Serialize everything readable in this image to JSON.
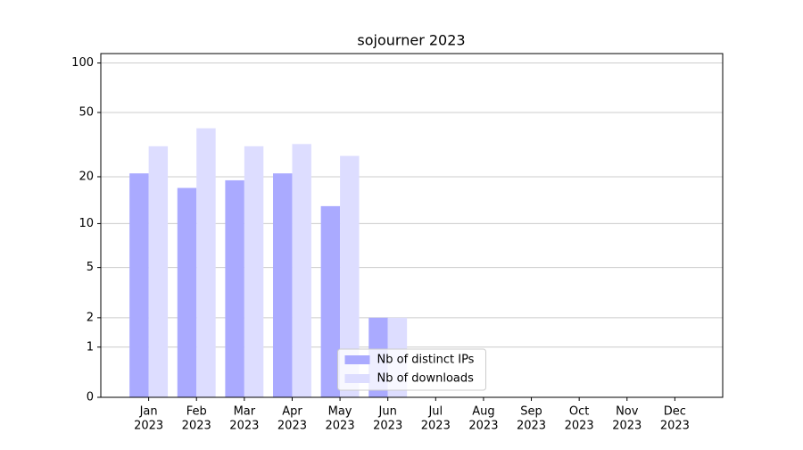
{
  "chart_data": {
    "type": "bar",
    "title": "sojourner 2023",
    "categories": [
      [
        "Jan",
        "2023"
      ],
      [
        "Feb",
        "2023"
      ],
      [
        "Mar",
        "2023"
      ],
      [
        "Apr",
        "2023"
      ],
      [
        "May",
        "2023"
      ],
      [
        "Jun",
        "2023"
      ],
      [
        "Jul",
        "2023"
      ],
      [
        "Aug",
        "2023"
      ],
      [
        "Sep",
        "2023"
      ],
      [
        "Oct",
        "2023"
      ],
      [
        "Nov",
        "2023"
      ],
      [
        "Dec",
        "2023"
      ]
    ],
    "series": [
      {
        "name": "Nb of distinct IPs",
        "color": "#aaaaff",
        "values": [
          21,
          17,
          19,
          21,
          13,
          2,
          0,
          0,
          0,
          0,
          0,
          0
        ]
      },
      {
        "name": "Nb of downloads",
        "color": "#ddddff",
        "values": [
          31,
          40,
          31,
          32,
          27,
          2,
          0,
          0,
          0,
          0,
          0,
          0
        ]
      }
    ],
    "yscale": "log1p",
    "ylim": [
      0,
      114
    ],
    "yticks": [
      0,
      1,
      2,
      5,
      10,
      20,
      50,
      100
    ],
    "grid": true,
    "legend": "lower center"
  }
}
